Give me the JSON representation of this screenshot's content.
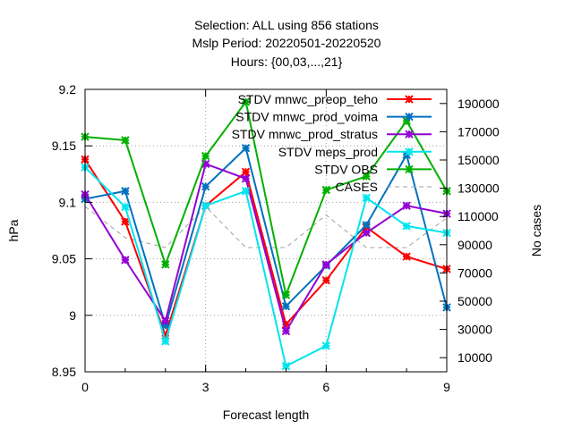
{
  "chart_data": {
    "type": "line",
    "title_lines": [
      "Selection: ALL using   856 stations",
      "Mslp   Period: 20220501-20220520",
      "Hours: {00,03,...,21}"
    ],
    "xlabel": "Forecast length",
    "ylabel": "hPa",
    "y2label": "No cases",
    "xlim": [
      0,
      9
    ],
    "ylim": [
      8.95,
      9.2
    ],
    "y2lim": [
      0,
      200000
    ],
    "x_ticks": [
      "0",
      "3",
      "6",
      "9"
    ],
    "y_ticks": [
      "8.95",
      "9",
      "9.05",
      "9.1",
      "9.15",
      "9.2"
    ],
    "y2_ticks": [
      "10000",
      "30000",
      "50000",
      "70000",
      "90000",
      "110000",
      "130000",
      "150000",
      "170000",
      "190000"
    ],
    "grid": true,
    "legend_position": "top-right",
    "x": [
      0,
      1,
      2,
      3,
      4,
      5,
      6,
      7,
      8,
      9
    ],
    "series": [
      {
        "name": "STDV mnwc_preop_teho",
        "color": "#ff0000",
        "marker": "x",
        "values": [
          9.138,
          9.083,
          8.982,
          9.097,
          9.127,
          8.992,
          9.031,
          9.078,
          9.052,
          9.041
        ]
      },
      {
        "name": "STDV mnwc_prod_voima",
        "color": "#0072bd",
        "marker": "x",
        "values": [
          9.103,
          9.11,
          8.991,
          9.114,
          9.148,
          9.008,
          9.044,
          9.08,
          9.142,
          9.007
        ]
      },
      {
        "name": "STDV mnwc_prod_stratus",
        "color": "#9400d3",
        "marker": "x",
        "values": [
          9.107,
          9.049,
          8.995,
          9.134,
          9.121,
          8.986,
          9.045,
          9.073,
          9.097,
          9.09
        ]
      },
      {
        "name": "STDV meps_prod",
        "color": "#00e5ee",
        "marker": "x",
        "values": [
          9.131,
          9.096,
          8.977,
          9.097,
          9.11,
          8.955,
          8.973,
          9.104,
          9.079,
          9.073
        ]
      },
      {
        "name": "STDV OBS",
        "color": "#00b000",
        "marker": "x",
        "values": [
          9.158,
          9.155,
          9.045,
          9.141,
          9.189,
          9.018,
          9.111,
          9.123,
          9.172,
          9.11
        ]
      },
      {
        "name": "CASES",
        "color": "#a0a0a0",
        "marker": "none",
        "dashed": true,
        "axis": "y2",
        "values": [
          117000,
          95000,
          88000,
          117000,
          88000,
          88000,
          111000,
          88000,
          88000,
          109000
        ]
      }
    ]
  }
}
